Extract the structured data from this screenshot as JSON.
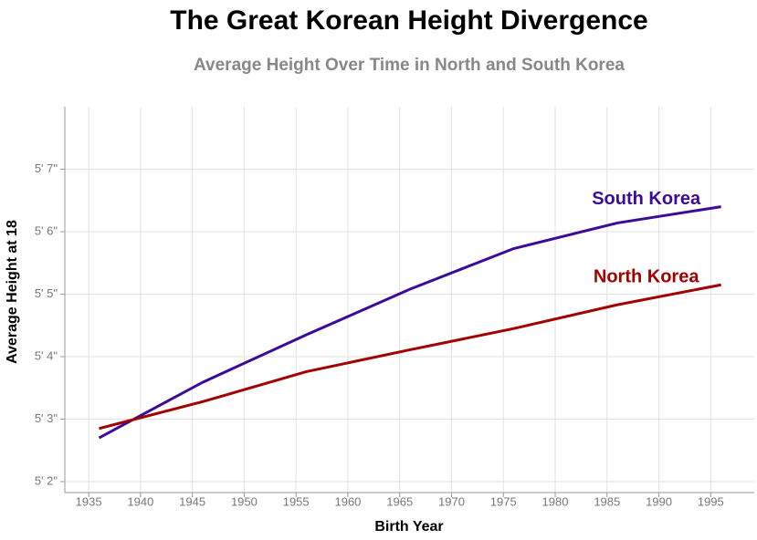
{
  "chart_data": {
    "type": "line",
    "title": "The Great Korean Height Divergence",
    "subtitle": "Average Height Over Time in North and South Korea",
    "x_label": "Birth Year",
    "y_label": "Average Height at 18",
    "x": [
      1936,
      1946,
      1956,
      1966,
      1976,
      1986,
      1996
    ],
    "series": [
      {
        "name": "South Korea",
        "color": "#3d0b99",
        "values": [
          62.7,
          63.59,
          64.35,
          65.08,
          65.73,
          66.14,
          66.4
        ]
      },
      {
        "name": "North Korea",
        "color": "#a30000",
        "values": [
          62.85,
          63.28,
          63.76,
          64.11,
          64.45,
          64.83,
          65.15
        ]
      }
    ],
    "xlim": [
      1932.7,
      1999.2
    ],
    "xticks": [
      1935,
      1940,
      1945,
      1950,
      1955,
      1960,
      1965,
      1970,
      1975,
      1980,
      1985,
      1990,
      1995
    ],
    "ylim": [
      62,
      68
    ],
    "yticks": [
      {
        "value": 62,
        "label": "5' 2\""
      },
      {
        "value": 63,
        "label": "5' 3\""
      },
      {
        "value": 64,
        "label": "5' 4\""
      },
      {
        "value": 65,
        "label": "5' 5\""
      },
      {
        "value": 66,
        "label": "5' 6\""
      },
      {
        "value": 67,
        "label": "5' 7\""
      }
    ],
    "grid": true
  }
}
